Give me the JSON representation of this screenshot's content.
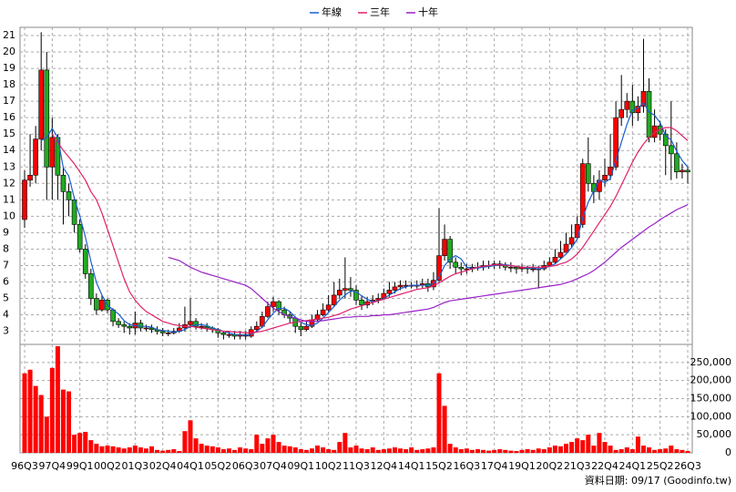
{
  "chart_data": {
    "type": "candlestick",
    "grid": true,
    "up_color": "#ff0000",
    "down_color": "#22aa22",
    "categories": [
      "96Q3",
      null,
      null,
      null,
      null,
      "97Q4",
      null,
      null,
      null,
      null,
      "99Q1",
      null,
      null,
      null,
      null,
      "00Q2",
      null,
      null,
      null,
      null,
      "01Q3",
      null,
      null,
      null,
      null,
      "02Q4",
      null,
      null,
      null,
      null,
      "04Q1",
      null,
      null,
      null,
      null,
      "05Q2",
      null,
      null,
      null,
      null,
      "06Q3",
      null,
      null,
      null,
      null,
      "07Q4",
      null,
      null,
      null,
      null,
      "09Q1",
      null,
      null,
      null,
      null,
      "10Q2",
      null,
      null,
      null,
      null,
      "11Q3",
      null,
      null,
      null,
      null,
      "12Q4",
      null,
      null,
      null,
      null,
      "14Q1",
      null,
      null,
      null,
      null,
      "15Q2",
      null,
      null,
      null,
      null,
      "16Q3",
      null,
      null,
      null,
      null,
      "17Q4",
      null,
      null,
      null,
      null,
      "19Q1",
      null,
      null,
      null,
      null,
      "20Q2",
      null,
      null,
      null,
      null,
      "21Q3",
      null,
      null,
      null,
      null,
      "22Q4",
      null,
      null,
      null,
      null,
      "24Q1",
      null,
      null,
      null,
      null,
      "25Q2",
      null,
      null,
      null,
      null,
      "26Q3"
    ],
    "open": [
      9.8,
      12.2,
      12.5,
      14.7,
      18.9,
      13.0,
      14.8,
      12.5,
      11.5,
      11.0,
      9.5,
      8.0,
      6.5,
      5.0,
      4.3,
      4.9,
      4.3,
      3.6,
      3.4,
      3.3,
      3.2,
      3.5,
      3.2,
      3.2,
      3.1,
      3.0,
      2.9,
      2.9,
      3.0,
      3.2,
      3.4,
      3.6,
      3.3,
      3.3,
      3.2,
      3.1,
      2.9,
      2.8,
      2.8,
      2.7,
      2.8,
      2.7,
      3.1,
      3.3,
      3.9,
      4.5,
      4.8,
      4.3,
      4.0,
      3.8,
      3.3,
      3.1,
      3.3,
      3.7,
      4.0,
      4.3,
      4.6,
      5.2,
      5.5,
      5.6,
      5.5,
      4.9,
      4.6,
      4.8,
      4.9,
      5.0,
      5.3,
      5.5,
      5.7,
      5.8,
      5.8,
      5.8,
      5.8,
      5.9,
      5.7,
      6.1,
      7.6,
      8.6,
      7.2,
      6.9,
      6.8,
      6.8,
      6.9,
      6.9,
      7.0,
      7.0,
      7.1,
      7.0,
      6.9,
      6.9,
      6.8,
      6.9,
      6.8,
      6.8,
      6.8,
      7.0,
      7.2,
      7.5,
      7.8,
      8.3,
      8.7,
      9.5,
      13.2,
      12.0,
      11.5,
      12.2,
      12.5,
      13.0,
      16.0,
      16.5,
      17.0,
      16.3,
      16.7,
      17.6,
      14.8,
      15.5,
      15.0,
      14.3,
      13.8,
      12.7,
      12.8
    ],
    "high": [
      12.8,
      15.0,
      15.5,
      21.2,
      20.0,
      16.0,
      15.0,
      13.0,
      12.0,
      11.2,
      9.8,
      8.3,
      6.8,
      5.3,
      5.2,
      5.0,
      4.4,
      3.8,
      3.6,
      3.5,
      4.2,
      3.7,
      3.4,
      3.4,
      3.3,
      3.2,
      3.1,
      3.2,
      3.5,
      4.5,
      5.0,
      3.8,
      3.5,
      3.5,
      3.3,
      3.2,
      3.0,
      3.0,
      3.0,
      3.0,
      3.0,
      3.3,
      3.6,
      4.2,
      4.8,
      5.1,
      4.9,
      4.5,
      4.2,
      3.9,
      3.5,
      3.6,
      4.0,
      4.3,
      4.7,
      5.2,
      6.0,
      6.2,
      7.5,
      6.3,
      5.8,
      5.2,
      5.1,
      5.2,
      5.3,
      5.6,
      6.0,
      6.0,
      6.1,
      6.1,
      6.0,
      6.1,
      6.2,
      6.2,
      6.6,
      10.5,
      9.5,
      8.8,
      7.5,
      7.2,
      7.1,
      7.1,
      7.2,
      7.3,
      7.3,
      7.3,
      7.3,
      7.2,
      7.2,
      7.0,
      7.1,
      7.0,
      7.1,
      7.0,
      7.3,
      7.5,
      8.0,
      8.5,
      9.0,
      9.5,
      10.0,
      13.5,
      14.8,
      12.5,
      12.8,
      13.5,
      15.0,
      17.0,
      18.6,
      17.5,
      18.0,
      17.3,
      20.8,
      18.4,
      16.5,
      15.8,
      15.3,
      17.0,
      14.5,
      13.2,
      13.0
    ],
    "low": [
      9.3,
      11.8,
      12.0,
      14.0,
      11.0,
      11.0,
      11.0,
      9.5,
      10.0,
      9.0,
      7.8,
      6.2,
      4.6,
      4.0,
      4.2,
      4.1,
      3.3,
      3.2,
      2.9,
      2.8,
      2.8,
      3.0,
      3.0,
      2.9,
      2.8,
      2.7,
      2.7,
      2.8,
      2.9,
      3.0,
      3.2,
      3.1,
      3.1,
      3.0,
      2.9,
      2.6,
      2.5,
      2.6,
      2.5,
      2.5,
      2.5,
      2.6,
      3.0,
      3.2,
      3.8,
      4.2,
      4.0,
      3.8,
      3.5,
      2.9,
      2.7,
      3.0,
      3.2,
      3.6,
      3.9,
      4.2,
      4.5,
      5.0,
      5.0,
      5.1,
      4.6,
      4.3,
      4.4,
      4.6,
      4.7,
      4.9,
      5.1,
      5.3,
      5.5,
      5.6,
      5.6,
      5.6,
      5.6,
      5.4,
      5.5,
      5.9,
      7.3,
      6.8,
      6.5,
      6.4,
      6.5,
      6.6,
      6.7,
      6.7,
      6.8,
      6.8,
      6.8,
      6.7,
      6.6,
      6.5,
      6.6,
      6.5,
      6.6,
      5.6,
      6.7,
      6.9,
      7.1,
      7.4,
      7.8,
      8.1,
      8.6,
      9.3,
      11.5,
      10.8,
      11.0,
      11.8,
      12.2,
      12.8,
      15.5,
      16.0,
      15.5,
      15.8,
      16.3,
      14.5,
      14.5,
      14.6,
      12.5,
      12.2,
      12.3,
      12.3,
      12.0
    ],
    "close": [
      12.2,
      12.5,
      14.7,
      18.9,
      13.0,
      14.8,
      12.5,
      11.5,
      11.0,
      9.5,
      8.0,
      6.5,
      5.0,
      4.3,
      4.9,
      4.3,
      3.6,
      3.4,
      3.3,
      3.2,
      3.5,
      3.2,
      3.2,
      3.1,
      3.0,
      2.9,
      2.9,
      3.0,
      3.2,
      3.4,
      3.6,
      3.3,
      3.3,
      3.2,
      3.1,
      2.9,
      2.8,
      2.8,
      2.7,
      2.8,
      2.7,
      3.1,
      3.3,
      3.9,
      4.5,
      4.8,
      4.3,
      4.0,
      3.8,
      3.3,
      3.1,
      3.3,
      3.7,
      4.0,
      4.3,
      4.6,
      5.2,
      5.5,
      5.6,
      5.5,
      4.9,
      4.6,
      4.8,
      4.9,
      5.0,
      5.3,
      5.5,
      5.7,
      5.8,
      5.8,
      5.8,
      5.8,
      5.9,
      5.7,
      6.1,
      7.6,
      8.6,
      7.2,
      6.9,
      6.8,
      6.8,
      6.9,
      6.9,
      7.0,
      7.0,
      7.1,
      7.0,
      6.9,
      6.9,
      6.8,
      6.9,
      6.8,
      6.8,
      6.8,
      7.0,
      7.2,
      7.5,
      7.8,
      8.3,
      8.7,
      9.5,
      13.2,
      12.0,
      11.5,
      12.2,
      12.5,
      13.0,
      16.0,
      16.5,
      17.0,
      16.3,
      16.7,
      17.6,
      14.8,
      15.5,
      15.0,
      14.3,
      13.8,
      12.7,
      12.8,
      12.7
    ],
    "ylim": [
      2.2,
      21.5
    ],
    "yticks": [
      3,
      4,
      5,
      6,
      7,
      8,
      9,
      10,
      11,
      12,
      13,
      14,
      15,
      16,
      17,
      18,
      19,
      20,
      21
    ],
    "series": [
      {
        "name": "年線",
        "color": "#1a5fd0",
        "values": [
          null,
          null,
          null,
          14.6,
          14.8,
          15.35,
          14.8,
          12.95,
          12.45,
          11.1,
          10.0,
          8.75,
          7.25,
          5.95,
          5.2,
          4.6,
          4.3,
          4.05,
          3.65,
          3.4,
          3.35,
          3.3,
          3.3,
          3.25,
          3.1,
          3.05,
          3.0,
          2.95,
          3.0,
          3.1,
          3.3,
          3.4,
          3.4,
          3.35,
          3.2,
          3.1,
          3.0,
          2.9,
          2.8,
          2.8,
          2.75,
          2.8,
          3.0,
          3.25,
          3.7,
          4.1,
          4.4,
          4.4,
          4.2,
          3.85,
          3.55,
          3.4,
          3.35,
          3.5,
          3.8,
          4.15,
          4.5,
          4.9,
          5.2,
          5.45,
          5.4,
          5.15,
          4.95,
          4.8,
          4.85,
          5.0,
          5.2,
          5.4,
          5.6,
          5.7,
          5.8,
          5.8,
          5.8,
          5.8,
          5.9,
          6.3,
          7.0,
          7.4,
          7.6,
          7.4,
          6.9,
          6.85,
          6.85,
          6.9,
          6.95,
          7.0,
          7.05,
          7.05,
          7.0,
          6.95,
          6.9,
          6.85,
          6.85,
          6.8,
          6.85,
          6.95,
          7.1,
          7.4,
          7.7,
          8.1,
          8.6,
          9.9,
          10.85,
          11.55,
          12.2,
          12.05,
          12.3,
          13.4,
          14.5,
          15.6,
          16.45,
          16.6,
          16.9,
          16.35,
          16.15,
          15.7,
          14.9,
          14.65,
          13.95,
          13.4,
          13.0
        ]
      },
      {
        "name": "三年",
        "color": "#e0206a",
        "values": [
          null,
          null,
          null,
          null,
          null,
          15.0,
          14.5,
          14.0,
          13.6,
          13.2,
          12.7,
          12.2,
          11.5,
          11.0,
          10.2,
          9.2,
          8.2,
          7.2,
          6.2,
          5.4,
          4.9,
          4.5,
          4.2,
          4.0,
          3.8,
          3.6,
          3.5,
          3.4,
          3.35,
          3.3,
          3.3,
          3.25,
          3.2,
          3.15,
          3.1,
          3.05,
          3.0,
          3.0,
          2.95,
          2.95,
          2.9,
          2.9,
          2.95,
          3.0,
          3.1,
          3.2,
          3.3,
          3.4,
          3.5,
          3.55,
          3.6,
          3.65,
          3.7,
          3.75,
          3.8,
          3.85,
          3.95,
          4.05,
          4.2,
          4.35,
          4.45,
          4.55,
          4.65,
          4.75,
          4.85,
          4.95,
          5.05,
          5.15,
          5.25,
          5.35,
          5.45,
          5.55,
          5.6,
          5.65,
          5.75,
          5.95,
          6.15,
          6.35,
          6.5,
          6.6,
          6.7,
          6.8,
          6.9,
          6.95,
          7.0,
          7.05,
          7.05,
          7.0,
          7.0,
          6.95,
          6.9,
          6.9,
          6.9,
          6.9,
          6.9,
          6.95,
          7.0,
          7.1,
          7.2,
          7.4,
          7.7,
          8.1,
          8.6,
          9.1,
          9.6,
          10.1,
          10.6,
          11.2,
          11.9,
          12.6,
          13.3,
          13.9,
          14.4,
          14.8,
          15.1,
          15.3,
          15.4,
          15.4,
          15.2,
          14.9,
          14.6
        ]
      },
      {
        "name": "十年",
        "color": "#9a20c8",
        "values": [
          null,
          null,
          null,
          null,
          null,
          null,
          null,
          null,
          null,
          null,
          null,
          null,
          null,
          null,
          null,
          null,
          null,
          null,
          null,
          null,
          null,
          null,
          null,
          null,
          null,
          null,
          7.5,
          7.4,
          7.3,
          7.1,
          6.9,
          6.75,
          6.6,
          6.5,
          6.4,
          6.3,
          6.2,
          6.1,
          6.0,
          5.9,
          5.8,
          5.6,
          5.3,
          5.0,
          4.7,
          4.4,
          4.2,
          4.0,
          3.9,
          3.8,
          3.7,
          3.6,
          3.6,
          3.6,
          3.65,
          3.7,
          3.75,
          3.8,
          3.85,
          3.85,
          3.9,
          3.9,
          3.9,
          3.95,
          3.95,
          4.0,
          4.0,
          4.05,
          4.1,
          4.15,
          4.2,
          4.25,
          4.3,
          4.35,
          4.45,
          4.6,
          4.75,
          4.85,
          4.9,
          4.95,
          5.0,
          5.05,
          5.1,
          5.15,
          5.2,
          5.25,
          5.3,
          5.35,
          5.4,
          5.45,
          5.5,
          5.55,
          5.6,
          5.65,
          5.7,
          5.75,
          5.8,
          5.85,
          5.95,
          6.05,
          6.2,
          6.35,
          6.5,
          6.7,
          6.95,
          7.2,
          7.5,
          7.8,
          8.1,
          8.35,
          8.6,
          8.85,
          9.1,
          9.35,
          9.55,
          9.8,
          10.0,
          10.2,
          10.4,
          10.55,
          10.7
        ]
      }
    ],
    "volume": {
      "color": "#ff0000",
      "values": [
        220000,
        230000,
        185000,
        160000,
        100000,
        235000,
        295000,
        175000,
        170000,
        50000,
        55000,
        58000,
        35000,
        25000,
        18000,
        20000,
        18000,
        15000,
        12000,
        15000,
        20000,
        15000,
        12000,
        18000,
        8000,
        6000,
        8000,
        10000,
        5000,
        60000,
        90000,
        40000,
        25000,
        20000,
        18000,
        15000,
        10000,
        12000,
        8000,
        15000,
        12000,
        10000,
        50000,
        25000,
        40000,
        50000,
        30000,
        20000,
        18000,
        15000,
        10000,
        8000,
        12000,
        20000,
        15000,
        10000,
        8000,
        30000,
        55000,
        15000,
        20000,
        12000,
        10000,
        15000,
        8000,
        10000,
        12000,
        15000,
        12000,
        10000,
        15000,
        8000,
        10000,
        12000,
        15000,
        220000,
        130000,
        25000,
        15000,
        10000,
        12000,
        8000,
        10000,
        8000,
        6000,
        8000,
        10000,
        8000,
        6000,
        5000,
        8000,
        10000,
        8000,
        12000,
        10000,
        15000,
        20000,
        18000,
        25000,
        30000,
        40000,
        35000,
        50000,
        20000,
        55000,
        30000,
        20000,
        8000,
        10000,
        15000,
        10000,
        45000,
        20000,
        15000,
        8000,
        10000,
        12000,
        20000,
        10000,
        8000,
        5000
      ],
      "ylim": [
        0,
        300000
      ],
      "yticks": [
        0,
        {
          "value": 50000,
          "label": "50,000"
        },
        {
          "value": 100000,
          "label": "100,000"
        },
        {
          "value": 150000,
          "label": "150,000"
        },
        {
          "value": 200000,
          "label": "200,000"
        },
        {
          "value": 250000,
          "label": "250,000"
        }
      ]
    },
    "footer": "資料日期: 09/17  (Goodinfo.tw)"
  }
}
